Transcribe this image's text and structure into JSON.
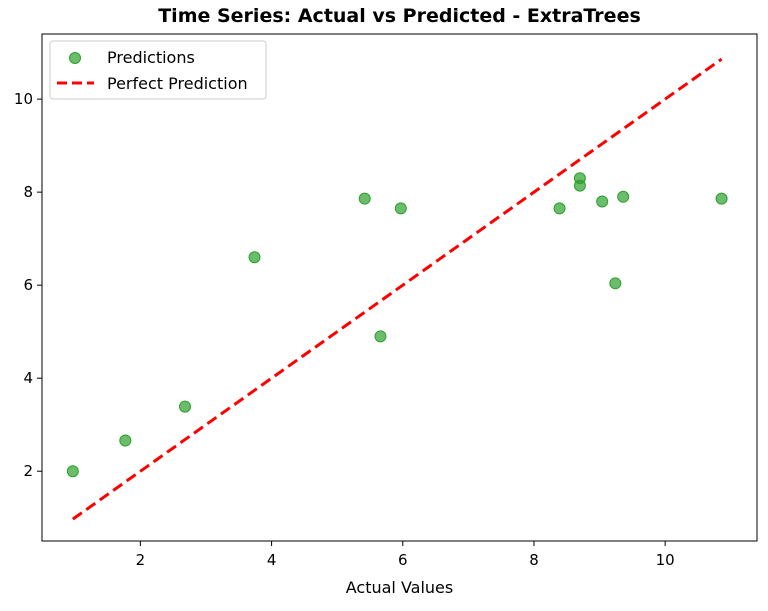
{
  "chart_data": {
    "type": "scatter",
    "title": "Time Series: Actual vs Predicted - ExtraTrees",
    "xlabel": "Actual Values",
    "ylabel": "",
    "xlim": [
      0.5,
      11.4
    ],
    "ylim": [
      0.5,
      11.4
    ],
    "xticks": [
      2,
      4,
      6,
      8,
      10
    ],
    "yticks": [
      2,
      4,
      6,
      8,
      10
    ],
    "grid": false,
    "legend_position": "top-left",
    "series": [
      {
        "name": "Predictions",
        "kind": "scatter",
        "color": "#2ca02c",
        "points": [
          {
            "x": 0.97,
            "y": 2.0
          },
          {
            "x": 1.77,
            "y": 2.66
          },
          {
            "x": 2.68,
            "y": 3.39
          },
          {
            "x": 3.74,
            "y": 6.6
          },
          {
            "x": 5.42,
            "y": 7.86
          },
          {
            "x": 5.66,
            "y": 4.9
          },
          {
            "x": 5.97,
            "y": 7.65
          },
          {
            "x": 8.39,
            "y": 7.65
          },
          {
            "x": 8.7,
            "y": 8.3
          },
          {
            "x": 8.7,
            "y": 8.14
          },
          {
            "x": 9.04,
            "y": 7.8
          },
          {
            "x": 9.24,
            "y": 6.04
          },
          {
            "x": 9.36,
            "y": 7.9
          },
          {
            "x": 10.86,
            "y": 7.86
          }
        ]
      },
      {
        "name": "Perfect Prediction",
        "kind": "line",
        "style": "dashed",
        "color": "#ff0000",
        "points": [
          {
            "x": 0.97,
            "y": 0.97
          },
          {
            "x": 10.86,
            "y": 10.86
          }
        ]
      }
    ]
  }
}
